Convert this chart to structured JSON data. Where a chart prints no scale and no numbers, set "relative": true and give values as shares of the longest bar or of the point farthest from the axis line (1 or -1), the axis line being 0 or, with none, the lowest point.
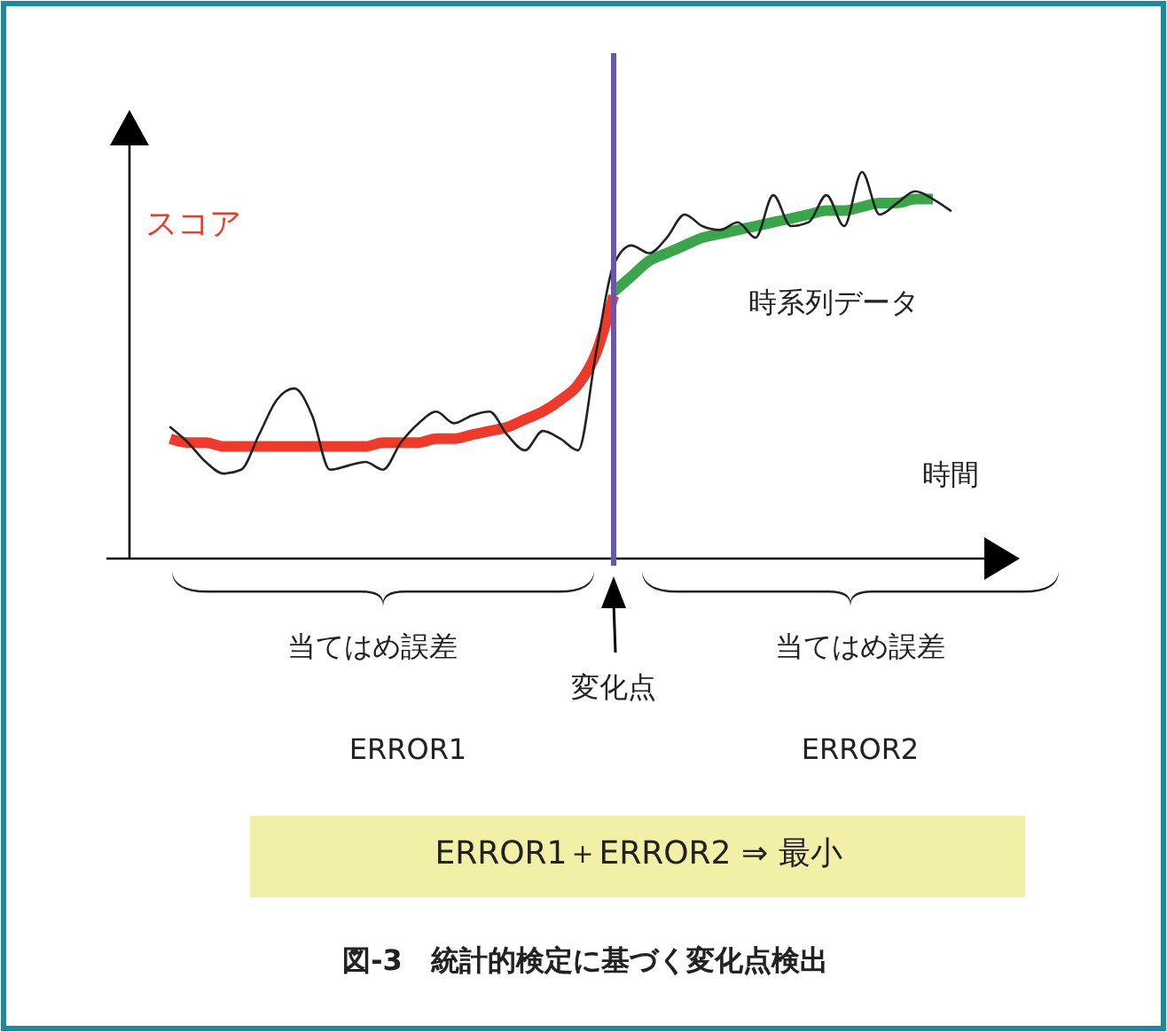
{
  "chart_data": {
    "type": "line",
    "relative": true,
    "title": "図-3　統計的検定に基づく変化点検出",
    "xlabel": "時間",
    "ylabel": "スコア",
    "marker": "none",
    "line_style": "solid",
    "categories": [
      null,
      null,
      null,
      null,
      null,
      null,
      null,
      null,
      null,
      null,
      null,
      null,
      null,
      null,
      null,
      null,
      null,
      null,
      null,
      null,
      null,
      null,
      null,
      null,
      null,
      null,
      null,
      null,
      null,
      null,
      null,
      null,
      null,
      null,
      null,
      null,
      null,
      null,
      null,
      null,
      null,
      null,
      null,
      null,
      null
    ],
    "series": [
      {
        "name": "時系列データ",
        "color": "#222222",
        "values": [
          0.34,
          0.3,
          0.25,
          0.22,
          0.23,
          0.32,
          0.41,
          0.44,
          0.37,
          0.23,
          0.24,
          0.25,
          0.23,
          0.3,
          0.35,
          0.38,
          0.35,
          0.37,
          0.38,
          0.32,
          0.28,
          0.33,
          0.31,
          0.28,
          0.53,
          0.76,
          0.81,
          0.79,
          0.83,
          0.89,
          0.86,
          0.85,
          0.87,
          0.83,
          0.94,
          0.86,
          0.87,
          0.94,
          0.86,
          1.0,
          0.89,
          0.92,
          0.95,
          0.93,
          0.9
        ]
      },
      {
        "color": "#ee3a2a",
        "values": [
          0.31,
          0.3,
          0.3,
          0.29,
          0.29,
          0.29,
          0.29,
          0.29,
          0.29,
          0.29,
          0.29,
          0.29,
          0.3,
          0.3,
          0.3,
          0.31,
          0.31,
          0.32,
          0.33,
          0.34,
          0.36,
          0.38,
          0.41,
          0.45,
          0.53,
          0.68,
          null,
          null,
          null,
          null,
          null,
          null,
          null,
          null,
          null,
          null,
          null,
          null,
          null,
          null,
          null,
          null,
          null,
          null,
          null
        ]
      },
      {
        "color": "#3aa54a",
        "values": [
          null,
          null,
          null,
          null,
          null,
          null,
          null,
          null,
          null,
          null,
          null,
          null,
          null,
          null,
          null,
          null,
          null,
          null,
          null,
          null,
          null,
          null,
          null,
          null,
          null,
          0.69,
          0.73,
          0.77,
          0.79,
          0.81,
          0.83,
          0.84,
          0.85,
          0.86,
          0.87,
          0.88,
          0.89,
          0.9,
          0.9,
          0.91,
          0.92,
          0.92,
          0.93,
          0.93,
          null
        ]
      }
    ],
    "annotations": [
      "当てはめ誤差",
      "当てはめ誤差",
      "ERROR1",
      "ERROR2",
      "ERROR1＋ERROR2 ⇒ 最小",
      "変化点"
    ]
  }
}
